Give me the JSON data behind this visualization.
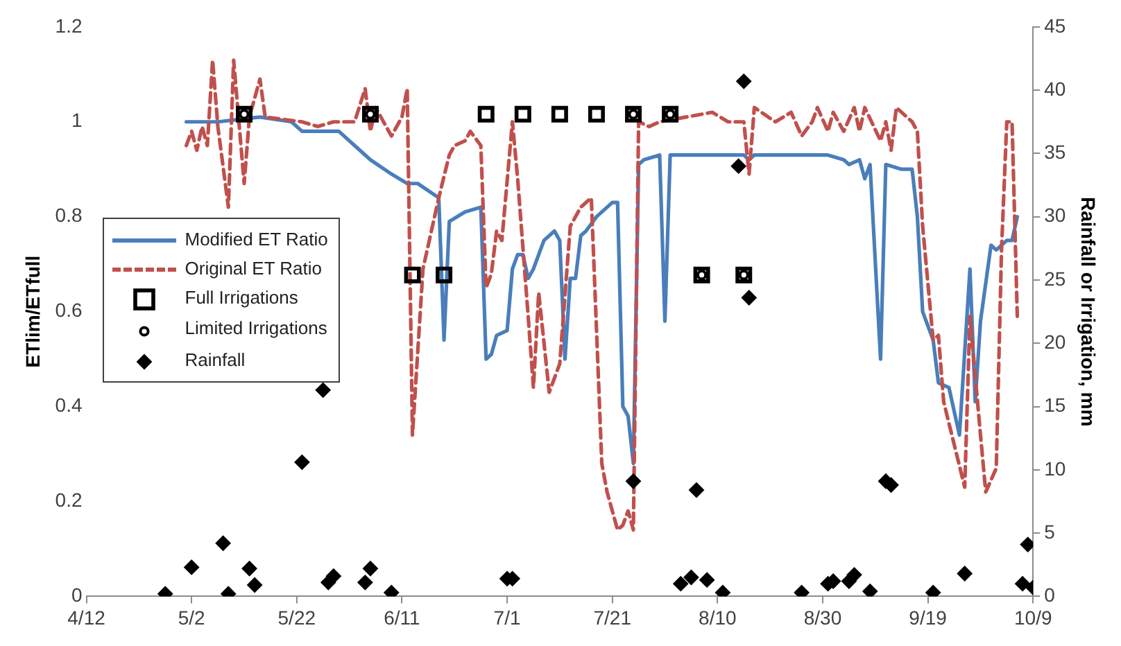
{
  "chart_data": {
    "type": "line",
    "ylabel": "ETlim/ETfull",
    "y2label": "Rainfall or Irrigation, mm",
    "xlim": [
      "--04-12",
      "--10-09"
    ],
    "xticks": [
      {
        "value": "--04-12",
        "label": "4/12"
      },
      {
        "value": "--05-02",
        "label": "5/2"
      },
      {
        "value": "--05-22",
        "label": "5/22"
      },
      {
        "value": "--06-11",
        "label": "6/11"
      },
      {
        "value": "--07-01",
        "label": "7/1"
      },
      {
        "value": "--07-21",
        "label": "7/21"
      },
      {
        "value": "--08-10",
        "label": "8/10"
      },
      {
        "value": "--08-30",
        "label": "8/30"
      },
      {
        "value": "--09-19",
        "label": "9/19"
      },
      {
        "value": "--10-09",
        "label": "10/9"
      }
    ],
    "ylim": [
      0,
      1.2
    ],
    "yticks": [
      0,
      0.2,
      0.4,
      0.6,
      0.8,
      1,
      1.2
    ],
    "y2lim": [
      0,
      45
    ],
    "y2ticks": [
      0,
      5,
      10,
      15,
      20,
      25,
      30,
      35,
      40,
      45
    ],
    "grid": false,
    "legend": "left",
    "series": [
      {
        "name": "Modified ET Ratio",
        "type": "line",
        "color": "#4a7ebb",
        "line_style": "solid",
        "marker": "none",
        "x": [
          "--05-01",
          "--05-03",
          "--05-07",
          "--05-15",
          "--05-21",
          "--05-23",
          "--05-27",
          "--05-30",
          "--06-02",
          "--06-05",
          "--06-09",
          "--06-12",
          "--06-14",
          "--06-18",
          "--06-19",
          "--06-20",
          "--06-23",
          "--06-26",
          "--06-27",
          "--06-28",
          "--06-29",
          "--07-01",
          "--07-02",
          "--07-03",
          "--07-04",
          "--07-05",
          "--07-06",
          "--07-07",
          "--07-08",
          "--07-10",
          "--07-11",
          "--07-12",
          "--07-13",
          "--07-14",
          "--07-15",
          "--07-16",
          "--07-18",
          "--07-21",
          "--07-22",
          "--07-23",
          "--07-24",
          "--07-25",
          "--07-26",
          "--07-27",
          "--07-30",
          "--07-31",
          "--08-01",
          "--08-10",
          "--08-15",
          "--08-16",
          "--08-17",
          "--08-31",
          "--09-03",
          "--09-04",
          "--09-06",
          "--09-07",
          "--09-08",
          "--09-10",
          "--09-11",
          "--09-14",
          "--09-16",
          "--09-17",
          "--09-18",
          "--09-20",
          "--09-21",
          "--09-23",
          "--09-25",
          "--09-27",
          "--09-28",
          "--09-29",
          "--10-01",
          "--10-02",
          "--10-04",
          "--10-05",
          "--10-06"
        ],
        "values": [
          1.0,
          1.0,
          1.0,
          1.01,
          1.0,
          0.98,
          0.98,
          0.98,
          0.95,
          0.92,
          0.89,
          0.87,
          0.87,
          0.84,
          0.54,
          0.79,
          0.81,
          0.82,
          0.5,
          0.51,
          0.55,
          0.56,
          0.69,
          0.72,
          0.72,
          0.67,
          0.69,
          0.72,
          0.75,
          0.77,
          0.75,
          0.5,
          0.67,
          0.67,
          0.76,
          0.77,
          0.8,
          0.83,
          0.83,
          0.4,
          0.38,
          0.28,
          0.91,
          0.92,
          0.93,
          0.58,
          0.93,
          0.93,
          0.93,
          0.92,
          0.93,
          0.93,
          0.92,
          0.91,
          0.92,
          0.88,
          0.91,
          0.5,
          0.91,
          0.9,
          0.9,
          0.8,
          0.6,
          0.54,
          0.45,
          0.44,
          0.34,
          0.69,
          0.41,
          0.58,
          0.74,
          0.73,
          0.75,
          0.75,
          0.8
        ]
      },
      {
        "name": "Original ET Ratio",
        "type": "line",
        "color": "#c0504d",
        "line_style": "dashed",
        "marker": "none",
        "x": [
          "--05-01",
          "--05-02",
          "--05-03",
          "--05-04",
          "--05-05",
          "--05-06",
          "--05-07",
          "--05-09",
          "--05-10",
          "--05-12",
          "--05-13",
          "--05-15",
          "--05-16",
          "--05-23",
          "--05-26",
          "--05-29",
          "--06-02",
          "--06-04",
          "--06-05",
          "--06-06",
          "--06-08",
          "--06-09",
          "--06-11",
          "--06-12",
          "--06-13",
          "--06-15",
          "--06-18",
          "--06-20",
          "--06-21",
          "--06-23",
          "--06-24",
          "--06-26",
          "--06-27",
          "--06-28",
          "--06-29",
          "--06-30",
          "--07-02",
          "--07-03",
          "--07-05",
          "--07-06",
          "--07-07",
          "--07-09",
          "--07-11",
          "--07-13",
          "--07-15",
          "--07-17",
          "--07-19",
          "--07-20",
          "--07-22",
          "--07-23",
          "--07-24",
          "--07-25",
          "--07-26",
          "--07-28",
          "--07-30",
          "--08-09",
          "--08-12",
          "--08-15",
          "--08-16",
          "--08-17",
          "--08-21",
          "--08-24",
          "--08-26",
          "--08-28",
          "--08-29",
          "--08-31",
          "--09-01",
          "--09-03",
          "--09-05",
          "--09-06",
          "--09-07",
          "--09-10",
          "--09-11",
          "--09-12",
          "--09-13",
          "--09-16",
          "--09-17",
          "--09-18",
          "--09-20",
          "--09-21",
          "--09-22",
          "--09-24",
          "--09-26",
          "--09-27",
          "--09-29",
          "--09-30",
          "--10-02",
          "--10-03",
          "--10-04",
          "--10-05",
          "--10-06"
        ],
        "values": [
          0.95,
          0.98,
          0.94,
          0.99,
          0.95,
          1.13,
          0.99,
          0.82,
          1.13,
          0.87,
          1.01,
          1.09,
          1.01,
          1.0,
          0.99,
          1.0,
          1.0,
          1.07,
          0.98,
          1.03,
          0.99,
          0.97,
          1.01,
          1.07,
          0.34,
          0.69,
          0.84,
          0.93,
          0.95,
          0.96,
          0.98,
          0.95,
          0.65,
          0.68,
          0.77,
          0.75,
          1.0,
          0.88,
          0.59,
          0.44,
          0.64,
          0.43,
          0.49,
          0.78,
          0.82,
          0.84,
          0.28,
          0.22,
          0.14,
          0.15,
          0.18,
          0.14,
          1.0,
          0.99,
          1.0,
          1.02,
          1.0,
          1.0,
          0.89,
          1.03,
          1.0,
          1.02,
          0.97,
          1.0,
          1.03,
          0.98,
          1.02,
          0.98,
          1.03,
          0.98,
          1.03,
          0.96,
          1.0,
          0.94,
          1.03,
          1.0,
          0.98,
          0.78,
          0.54,
          0.55,
          0.41,
          0.32,
          0.23,
          0.59,
          0.34,
          0.22,
          0.27,
          0.73,
          1.0,
          1.0,
          0.59
        ]
      },
      {
        "name": "Full Irrigations",
        "type": "scatter",
        "axis": "y2",
        "color": "#000000",
        "marker": "square",
        "x": [
          "--05-12",
          "--06-05",
          "--06-13",
          "--06-19",
          "--06-27",
          "--07-04",
          "--07-11",
          "--07-18",
          "--07-25",
          "--08-01",
          "--08-07",
          "--08-15"
        ],
        "values": [
          38.1,
          38.1,
          25.4,
          25.4,
          38.1,
          38.1,
          38.1,
          38.1,
          38.1,
          38.1,
          25.4,
          25.4
        ]
      },
      {
        "name": "Limited Irrigations",
        "type": "scatter",
        "axis": "y2",
        "color": "#000000",
        "marker": "circle",
        "x": [
          "--05-12",
          "--06-05",
          "--07-25",
          "--08-01",
          "--08-07",
          "--08-15"
        ],
        "values": [
          38.1,
          38.1,
          38.1,
          38.1,
          25.4,
          25.4
        ]
      },
      {
        "name": "Rainfall",
        "type": "scatter",
        "axis": "y2",
        "color": "#000000",
        "marker": "diamond",
        "x": [
          "--04-27",
          "--05-02",
          "--05-08",
          "--05-09",
          "--05-13",
          "--05-14",
          "--05-23",
          "--05-27",
          "--05-28",
          "--05-29",
          "--06-04",
          "--06-05",
          "--06-09",
          "--07-01",
          "--07-02",
          "--07-25",
          "--08-03",
          "--08-05",
          "--08-06",
          "--08-08",
          "--08-11",
          "--08-14",
          "--08-15",
          "--08-16",
          "--08-26",
          "--08-31",
          "--09-01",
          "--09-04",
          "--09-05",
          "--09-08",
          "--09-11",
          "--09-12",
          "--09-20",
          "--09-26",
          "--10-07",
          "--10-08",
          "--10-09"
        ],
        "values": [
          0.2,
          2.3,
          4.2,
          0.2,
          2.2,
          0.9,
          10.6,
          16.3,
          1.1,
          1.6,
          1.1,
          2.2,
          0.3,
          1.4,
          1.4,
          9.1,
          1.0,
          1.5,
          8.4,
          1.3,
          0.3,
          34.0,
          40.7,
          23.6,
          0.3,
          1.0,
          1.2,
          1.2,
          1.7,
          0.4,
          9.1,
          8.8,
          0.3,
          1.8,
          1.0,
          4.1,
          0.7
        ]
      }
    ]
  }
}
